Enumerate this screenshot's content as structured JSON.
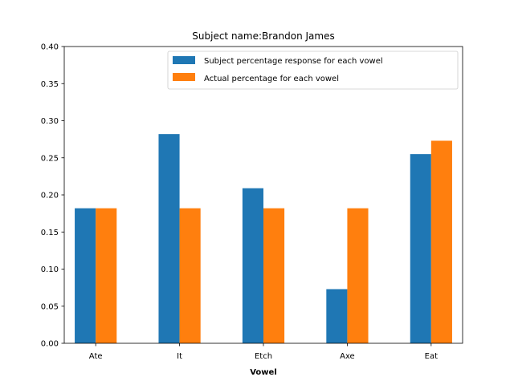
{
  "chart_data": {
    "type": "bar",
    "title": "Subject name:Brandon James",
    "xlabel": "Vowel",
    "ylabel": "",
    "ylim": [
      0,
      0.4
    ],
    "yticks": [
      "0.00",
      "0.05",
      "0.10",
      "0.15",
      "0.20",
      "0.25",
      "0.30",
      "0.35",
      "0.40"
    ],
    "categories": [
      "Ate",
      "It",
      "Etch",
      "Axe",
      "Eat"
    ],
    "legend_position": "top-right",
    "grid": false,
    "series": [
      {
        "name": "Subject percentage response for each vowel",
        "color": "#1f77b4",
        "values": [
          0.182,
          0.282,
          0.209,
          0.073,
          0.255
        ]
      },
      {
        "name": "Actual percentage for each vowel",
        "color": "#ff7f0e",
        "values": [
          0.182,
          0.182,
          0.182,
          0.182,
          0.273
        ]
      }
    ]
  }
}
